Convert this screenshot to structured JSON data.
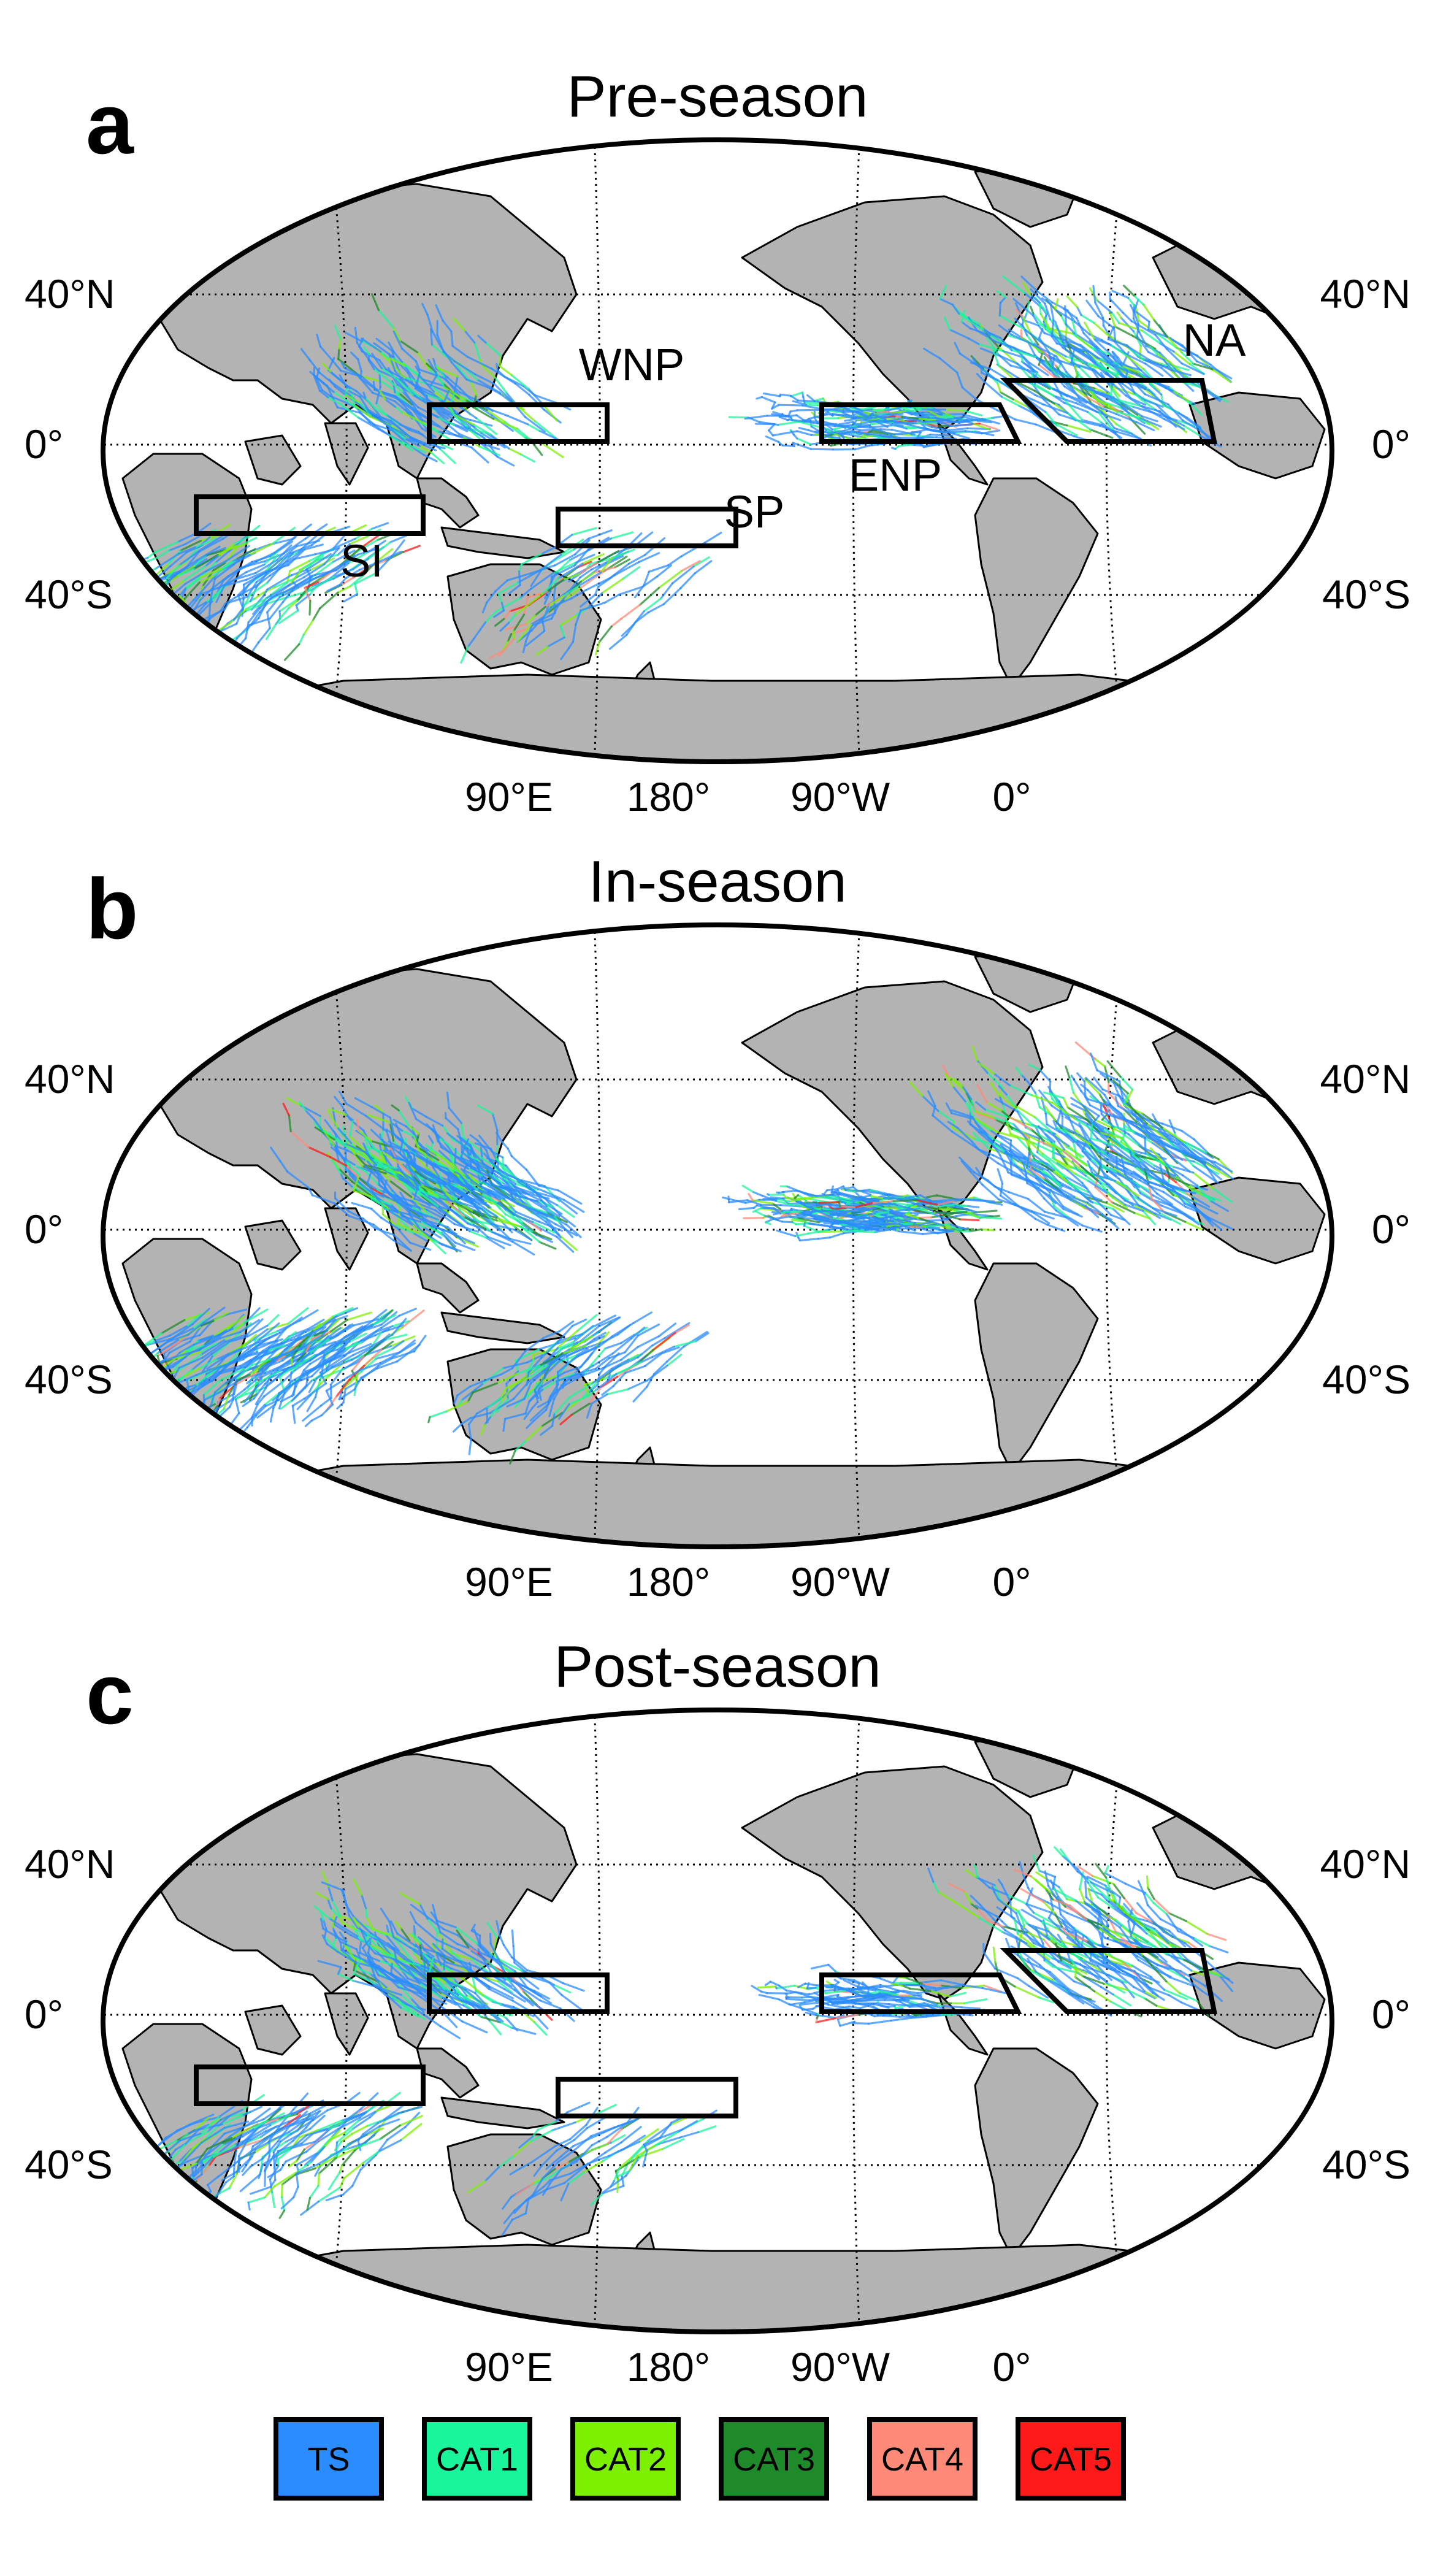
{
  "panels": [
    {
      "letter": "a",
      "title": "Pre-season",
      "lat_labels": [
        "40°N",
        "0°",
        "40°S"
      ],
      "lon_labels": [
        "90°E",
        "180°",
        "90°W",
        "0°"
      ],
      "regions": [
        {
          "key": "WNP",
          "label": "WNP"
        },
        {
          "key": "NA",
          "label": "NA"
        },
        {
          "key": "ENP",
          "label": "ENP"
        },
        {
          "key": "SP",
          "label": "SP"
        },
        {
          "key": "SI",
          "label": "SI"
        }
      ],
      "track_density": {
        "WNP": 0.45,
        "NA": 0.7,
        "ENP": 0.6,
        "SP": 0.35,
        "SI": 0.55
      }
    },
    {
      "letter": "b",
      "title": "In-season",
      "lat_labels": [
        "40°N",
        "0°",
        "40°S"
      ],
      "lon_labels": [
        "90°E",
        "180°",
        "90°W",
        "0°"
      ],
      "regions": [],
      "track_density": {
        "WNP": 1.0,
        "NA": 0.9,
        "ENP": 0.9,
        "SP": 0.5,
        "SI": 0.9
      }
    },
    {
      "letter": "c",
      "title": "Post-season",
      "lat_labels": [
        "40°N",
        "0°",
        "40°S"
      ],
      "lon_labels": [
        "90°E",
        "180°",
        "90°W",
        "0°"
      ],
      "regions": [
        {
          "key": "WNP",
          "label": ""
        },
        {
          "key": "NA",
          "label": ""
        },
        {
          "key": "ENP",
          "label": ""
        },
        {
          "key": "SP",
          "label": ""
        },
        {
          "key": "SI",
          "label": ""
        }
      ],
      "track_density": {
        "WNP": 0.55,
        "NA": 0.6,
        "ENP": 0.45,
        "SP": 0.25,
        "SI": 0.5
      }
    }
  ],
  "legend": [
    {
      "label": "TS",
      "color": "#2b8cff"
    },
    {
      "label": "CAT1",
      "color": "#19f59a"
    },
    {
      "label": "CAT2",
      "color": "#7cf000"
    },
    {
      "label": "CAT3",
      "color": "#1f8a2a"
    },
    {
      "label": "CAT4",
      "color": "#ff8a78"
    },
    {
      "label": "CAT5",
      "color": "#ff1a1a"
    }
  ],
  "colors": {
    "land": "#b3b3b4",
    "ocean": "#ffffff",
    "frame": "#000000"
  }
}
